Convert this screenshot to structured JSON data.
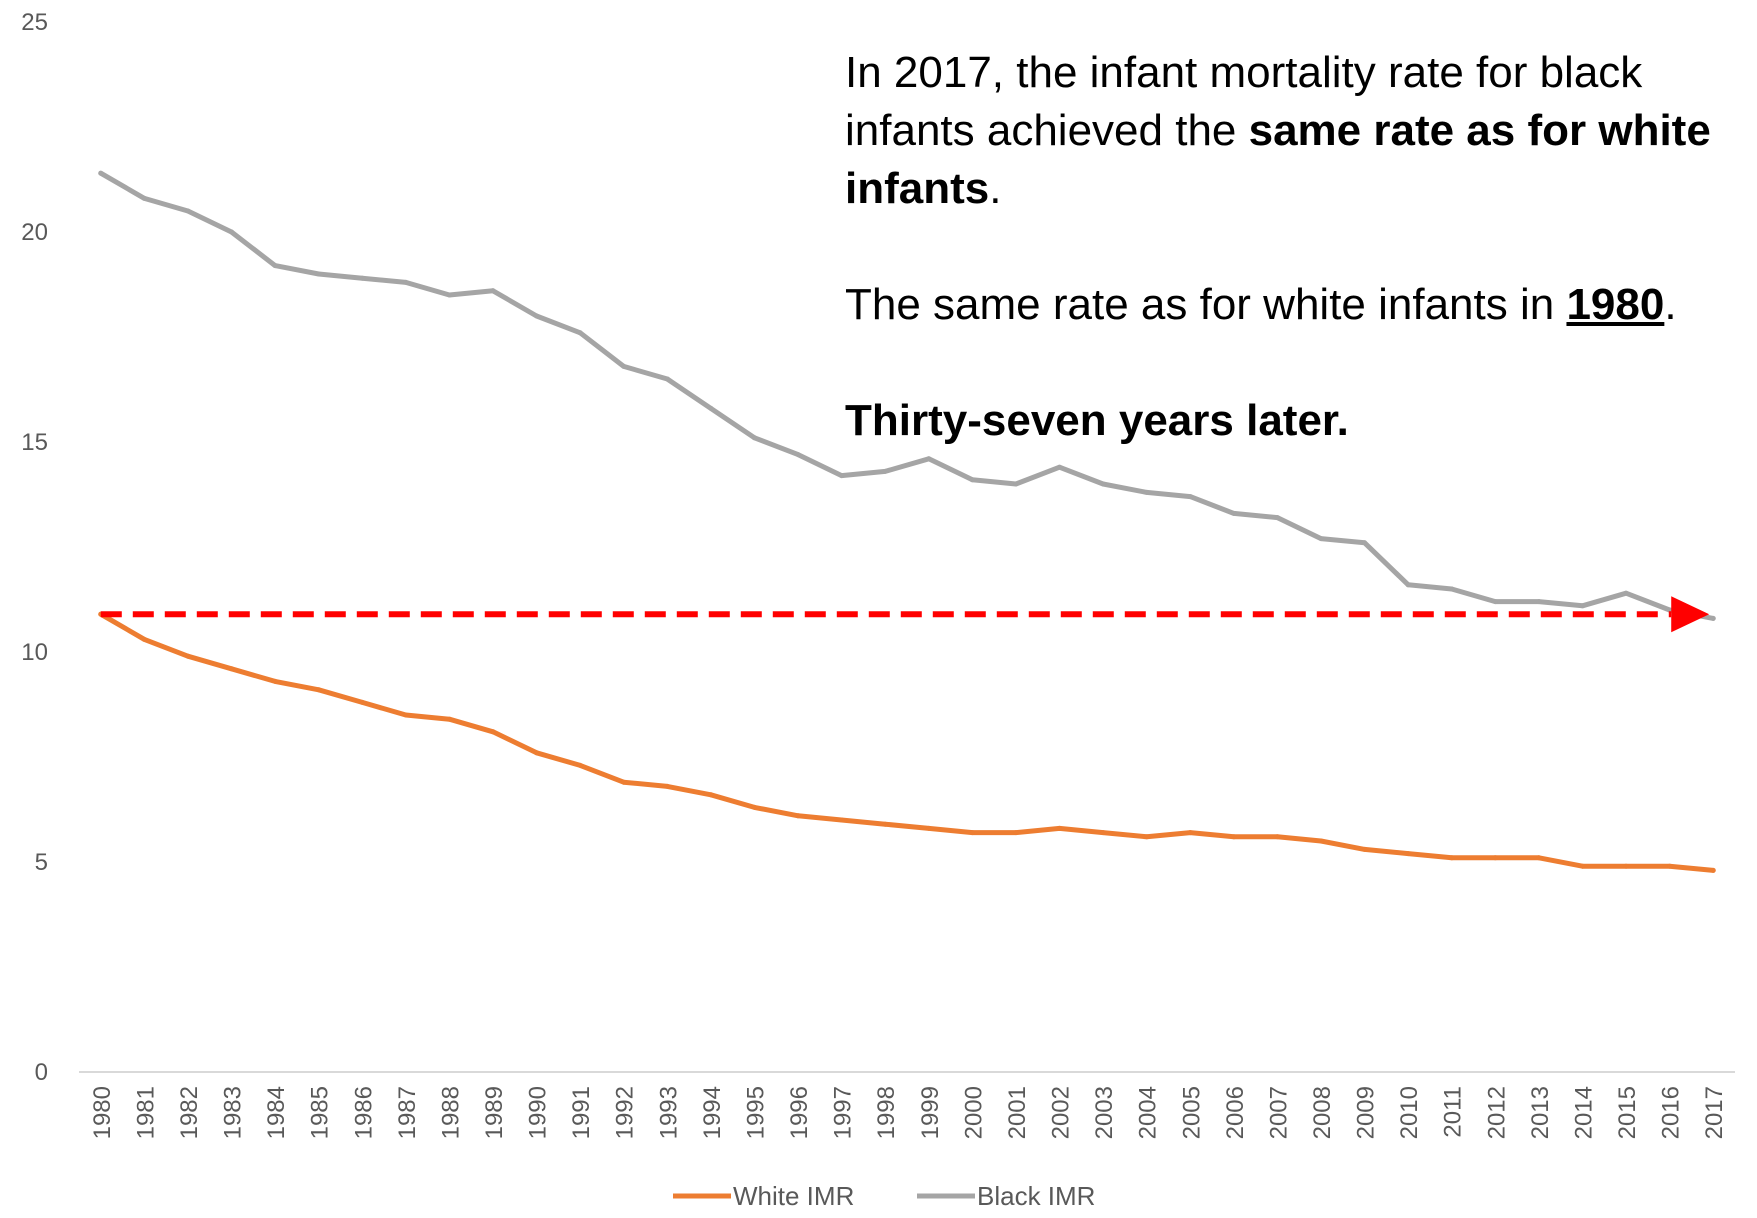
{
  "chart_data": {
    "type": "line",
    "title": "",
    "xlabel": "",
    "ylabel": "",
    "ylim": [
      0,
      25
    ],
    "yticks": [
      0,
      5,
      10,
      15,
      20,
      25
    ],
    "x": [
      1980,
      1981,
      1982,
      1983,
      1984,
      1985,
      1986,
      1987,
      1988,
      1989,
      1990,
      1991,
      1992,
      1993,
      1994,
      1995,
      1996,
      1997,
      1998,
      1999,
      2000,
      2001,
      2002,
      2003,
      2004,
      2005,
      2006,
      2007,
      2008,
      2009,
      2010,
      2011,
      2012,
      2013,
      2014,
      2015,
      2016,
      2017
    ],
    "series": [
      {
        "name": "White IMR",
        "color": "#ED7D31",
        "values": [
          10.9,
          10.3,
          9.9,
          9.6,
          9.3,
          9.1,
          8.8,
          8.5,
          8.4,
          8.1,
          7.6,
          7.3,
          6.9,
          6.8,
          6.6,
          6.3,
          6.1,
          6.0,
          5.9,
          5.8,
          5.7,
          5.7,
          5.8,
          5.7,
          5.6,
          5.7,
          5.6,
          5.6,
          5.5,
          5.3,
          5.2,
          5.1,
          5.1,
          5.1,
          4.9,
          4.9,
          4.9,
          4.8
        ]
      },
      {
        "name": "Black IMR",
        "color": "#A5A5A5",
        "values": [
          21.4,
          20.8,
          20.5,
          20.0,
          19.2,
          19.0,
          18.9,
          18.8,
          18.5,
          18.6,
          18.0,
          17.6,
          16.8,
          16.5,
          15.8,
          15.1,
          14.7,
          14.2,
          14.3,
          14.6,
          14.1,
          14.0,
          14.4,
          14.0,
          13.8,
          13.7,
          13.3,
          13.2,
          12.7,
          12.6,
          11.6,
          11.5,
          11.2,
          11.2,
          11.1,
          11.4,
          11.0,
          10.8
        ]
      }
    ],
    "reference_line": {
      "value": 10.9,
      "from": 1980,
      "to": 2017,
      "color": "#FF0000",
      "style": "dashed-arrow"
    },
    "legend": {
      "position": "bottom"
    },
    "grid": false
  },
  "annotation": {
    "p1_a": "In 2017, the infant mortality rate for black infants achieved the ",
    "p1_b": "same rate as for white infants",
    "p1_c": ".",
    "p2_a": "The same rate as for white infants in ",
    "p2_b": "1980",
    "p2_c": ".",
    "p3": "Thirty-seven years later."
  }
}
